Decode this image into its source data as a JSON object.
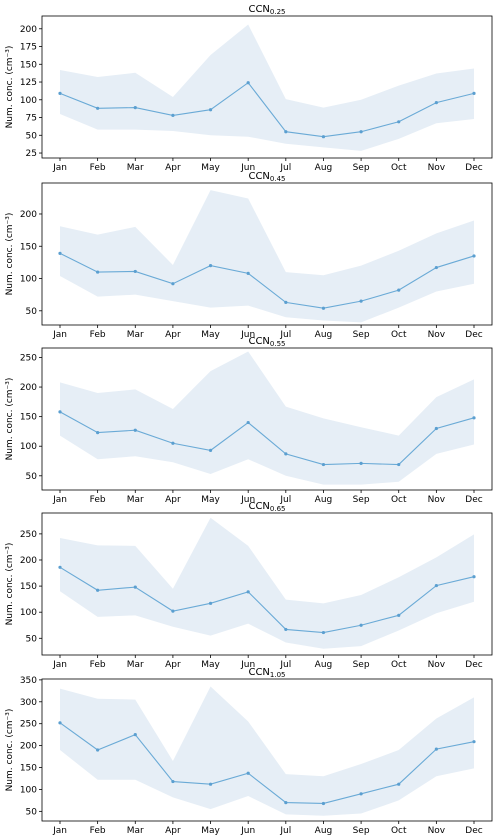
{
  "figure": {
    "background": "#ffffff",
    "line_color": "#6aaad6",
    "band_color": "#e6eef6",
    "marker_color": "#5b9fd0"
  },
  "chart_data": [
    {
      "type": "line",
      "title": "CCN",
      "title_sub": "0.25",
      "ylabel": "Num. conc. (cm⁻³)",
      "categories": [
        "Jan",
        "Feb",
        "Mar",
        "Apr",
        "May",
        "Jun",
        "Jul",
        "Aug",
        "Sep",
        "Oct",
        "Nov",
        "Dec"
      ],
      "values": [
        109,
        88,
        89,
        78,
        86,
        124,
        55,
        48,
        55,
        69,
        96,
        109
      ],
      "band_upper": [
        142,
        132,
        138,
        104,
        163,
        206,
        101,
        89,
        100,
        120,
        137,
        144
      ],
      "band_lower": [
        80,
        58,
        58,
        56,
        50,
        48,
        38,
        33,
        28,
        45,
        67,
        73
      ],
      "ylim": [
        18,
        218
      ],
      "yticks": [
        25,
        50,
        75,
        100,
        125,
        150,
        175,
        200
      ],
      "grid": false
    },
    {
      "type": "line",
      "title": "CCN",
      "title_sub": "0.45",
      "ylabel": "Num. conc. (cm⁻³)",
      "categories": [
        "Jan",
        "Feb",
        "Mar",
        "Apr",
        "May",
        "Jun",
        "Jul",
        "Aug",
        "Sep",
        "Oct",
        "Nov",
        "Dec"
      ],
      "values": [
        139,
        110,
        111,
        92,
        120,
        108,
        63,
        54,
        65,
        82,
        117,
        135
      ],
      "band_upper": [
        181,
        168,
        180,
        121,
        237,
        224,
        110,
        105,
        120,
        143,
        170,
        190
      ],
      "band_lower": [
        104,
        72,
        75,
        65,
        55,
        58,
        40,
        35,
        32,
        55,
        80,
        92
      ],
      "ylim": [
        28,
        248
      ],
      "yticks": [
        50,
        100,
        150,
        200
      ],
      "grid": false
    },
    {
      "type": "line",
      "title": "CCN",
      "title_sub": "0.55",
      "ylabel": "Num. conc. (cm⁻³)",
      "categories": [
        "Jan",
        "Feb",
        "Mar",
        "Apr",
        "May",
        "Jun",
        "Jul",
        "Aug",
        "Sep",
        "Oct",
        "Nov",
        "Dec"
      ],
      "values": [
        158,
        123,
        127,
        105,
        93,
        140,
        87,
        69,
        71,
        69,
        130,
        148
      ],
      "band_upper": [
        208,
        190,
        196,
        163,
        227,
        260,
        167,
        147,
        132,
        118,
        183,
        213
      ],
      "band_lower": [
        118,
        78,
        83,
        73,
        53,
        78,
        50,
        35,
        35,
        40,
        87,
        103
      ],
      "ylim": [
        26,
        266
      ],
      "yticks": [
        50,
        100,
        150,
        200,
        250
      ],
      "grid": false
    },
    {
      "type": "line",
      "title": "CCN",
      "title_sub": "0.65",
      "ylabel": "Num. conc. (cm⁻³)",
      "categories": [
        "Jan",
        "Feb",
        "Mar",
        "Apr",
        "May",
        "Jun",
        "Jul",
        "Aug",
        "Sep",
        "Oct",
        "Nov",
        "Dec"
      ],
      "values": [
        186,
        142,
        148,
        102,
        117,
        139,
        67,
        61,
        75,
        94,
        151,
        168
      ],
      "band_upper": [
        242,
        228,
        227,
        145,
        281,
        227,
        124,
        117,
        133,
        167,
        205,
        249
      ],
      "band_lower": [
        140,
        91,
        94,
        72,
        55,
        78,
        42,
        30,
        35,
        65,
        98,
        120
      ],
      "ylim": [
        18,
        290
      ],
      "yticks": [
        50,
        100,
        150,
        200,
        250
      ],
      "grid": false
    },
    {
      "type": "line",
      "title": "CCN",
      "title_sub": "1.05",
      "ylabel": "Num. conc. (cm⁻³)",
      "categories": [
        "Jan",
        "Feb",
        "Mar",
        "Apr",
        "May",
        "Jun",
        "Jul",
        "Aug",
        "Sep",
        "Oct",
        "Nov",
        "Dec"
      ],
      "values": [
        252,
        190,
        225,
        118,
        112,
        137,
        70,
        68,
        90,
        112,
        192,
        209
      ],
      "band_upper": [
        330,
        307,
        305,
        165,
        335,
        255,
        135,
        130,
        158,
        190,
        262,
        310
      ],
      "band_lower": [
        190,
        122,
        122,
        82,
        55,
        85,
        43,
        40,
        45,
        75,
        130,
        148
      ],
      "ylim": [
        28,
        352
      ],
      "yticks": [
        50,
        100,
        150,
        200,
        250,
        300,
        350
      ],
      "grid": false
    }
  ]
}
